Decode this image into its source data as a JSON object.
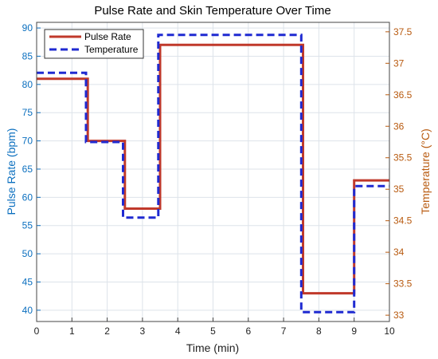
{
  "chart_data": {
    "type": "line",
    "title": "Pulse Rate and Skin Temperature Over Time",
    "xlabel": "Time (min)",
    "ylabel_left": "Pulse Rate (bpm)",
    "ylabel_right": "Temperature (°C)",
    "xlim": [
      0,
      10
    ],
    "ylim_left": [
      38,
      91
    ],
    "ylim_right": [
      32.9,
      37.65
    ],
    "x_ticks": [
      "0",
      "1",
      "2",
      "3",
      "4",
      "5",
      "6",
      "7",
      "8",
      "9",
      "10"
    ],
    "y_left_ticks": [
      "40",
      "45",
      "50",
      "55",
      "60",
      "65",
      "70",
      "75",
      "80",
      "85",
      "90"
    ],
    "y_right_ticks": [
      "33",
      "33.5",
      "34",
      "34.5",
      "35",
      "35.5",
      "36",
      "36.5",
      "37",
      "37.5"
    ],
    "grid": true,
    "legend_position": "top-left",
    "series": [
      {
        "name": "Pulse Rate",
        "axis": "left",
        "color": "#c0392b",
        "style": "solid",
        "x": [
          0,
          1.45,
          1.45,
          2.5,
          2.5,
          3.5,
          3.5,
          7.55,
          7.55,
          9,
          9,
          10
        ],
        "y": [
          81,
          81,
          70,
          70,
          58,
          58,
          87,
          87,
          43,
          43,
          63,
          63
        ]
      },
      {
        "name": "Temperature",
        "axis": "right",
        "color": "#1f2ad1",
        "style": "dashed",
        "x": [
          0,
          1.4,
          1.4,
          2.45,
          2.45,
          3.45,
          3.45,
          7.5,
          7.5,
          9,
          9,
          10
        ],
        "y": [
          36.85,
          36.85,
          35.75,
          35.75,
          34.55,
          34.55,
          37.45,
          37.45,
          33.05,
          33.05,
          35.05,
          35.05
        ]
      }
    ]
  }
}
